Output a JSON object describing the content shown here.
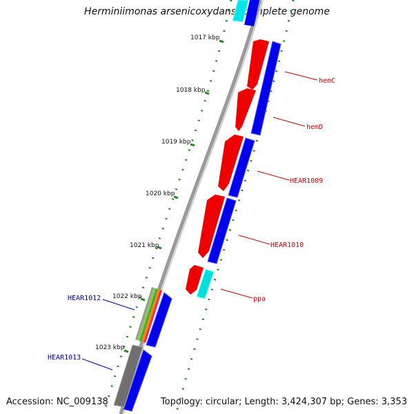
{
  "title": "Herminiimonas arsenicoxydans, complete genome",
  "footer": {
    "accession": "Accession: NC_009138",
    "topology": "Topology: circular; Length: 3,424,307 bp; Genes: 3,353"
  },
  "scale_ticks": [
    "1017 kbp",
    "1018 kbp",
    "1019 kbp",
    "1020 kbp",
    "1021 kbp",
    "1022 kbp",
    "1023 kbp"
  ],
  "genes_right": [
    {
      "name": "hemC",
      "color": "#cc0000"
    },
    {
      "name": "hemD",
      "color": "#cc0000"
    },
    {
      "name": "HEAR1009",
      "color": "#cc0000"
    },
    {
      "name": "HEAR1010",
      "color": "#cc0000"
    },
    {
      "name": "ppa",
      "color": "#cc0000"
    }
  ],
  "genes_left": [
    {
      "name": "HEAR1012",
      "color": "#0000aa"
    },
    {
      "name": "HEAR1013",
      "color": "#0000aa"
    }
  ],
  "colors": {
    "forward_gene": "#ee0000",
    "cds": "#0000ee",
    "trna": "#00e0e0",
    "other": "#777777",
    "backbone": "#999999",
    "tick": "#228822"
  }
}
